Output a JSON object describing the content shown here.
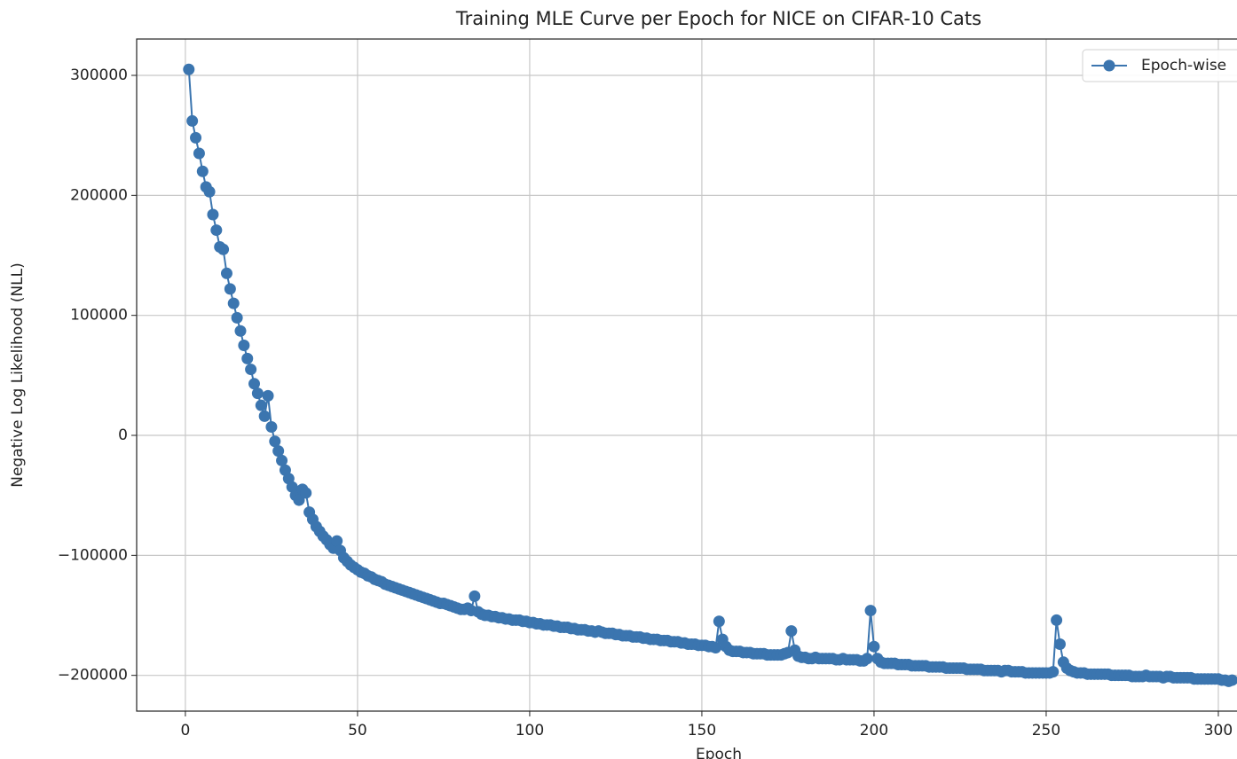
{
  "chart_data": {
    "type": "line",
    "title": "Training MLE Curve per Epoch for NICE on CIFAR-10 Cats",
    "xlabel": "Epoch",
    "ylabel": "Negative Log Likelihood (NLL)",
    "xlim": [
      -14.15,
      318.15
    ],
    "ylim": [
      -229800,
      330300
    ],
    "xticks": [
      0,
      50,
      100,
      150,
      200,
      250,
      300
    ],
    "yticks": [
      {
        "value": -200000,
        "label": "−200000"
      },
      {
        "value": -100000,
        "label": "−100000"
      },
      0,
      100000,
      200000,
      300000
    ],
    "grid": true,
    "legend": "upper right",
    "x": [
      1,
      2,
      3,
      4,
      5,
      6,
      7,
      8,
      9,
      10,
      11,
      12,
      13,
      14,
      15,
      16,
      17,
      18,
      19,
      20,
      21,
      22,
      23,
      24,
      25,
      26,
      27,
      28,
      29,
      30,
      31,
      32,
      33,
      34,
      35,
      36,
      37,
      38,
      39,
      40,
      41,
      42,
      43,
      44,
      45,
      46,
      47,
      48,
      49,
      50,
      51,
      52,
      53,
      54,
      55,
      56,
      57,
      58,
      59,
      60,
      61,
      62,
      63,
      64,
      65,
      66,
      67,
      68,
      69,
      70,
      71,
      72,
      73,
      74,
      75,
      76,
      77,
      78,
      79,
      80,
      81,
      82,
      83,
      84,
      85,
      86,
      87,
      88,
      89,
      90,
      91,
      92,
      93,
      94,
      95,
      96,
      97,
      98,
      99,
      100,
      101,
      102,
      103,
      104,
      105,
      106,
      107,
      108,
      109,
      110,
      111,
      112,
      113,
      114,
      115,
      116,
      117,
      118,
      119,
      120,
      121,
      122,
      123,
      124,
      125,
      126,
      127,
      128,
      129,
      130,
      131,
      132,
      133,
      134,
      135,
      136,
      137,
      138,
      139,
      140,
      141,
      142,
      143,
      144,
      145,
      146,
      147,
      148,
      149,
      150,
      151,
      152,
      153,
      154,
      155,
      156,
      157,
      158,
      159,
      160,
      161,
      162,
      163,
      164,
      165,
      166,
      167,
      168,
      169,
      170,
      171,
      172,
      173,
      174,
      175,
      176,
      177,
      178,
      179,
      180,
      181,
      182,
      183,
      184,
      185,
      186,
      187,
      188,
      189,
      190,
      191,
      192,
      193,
      194,
      195,
      196,
      197,
      198,
      199,
      200,
      201,
      202,
      203,
      204,
      205,
      206,
      207,
      208,
      209,
      210,
      211,
      212,
      213,
      214,
      215,
      216,
      217,
      218,
      219,
      220,
      221,
      222,
      223,
      224,
      225,
      226,
      227,
      228,
      229,
      230,
      231,
      232,
      233,
      234,
      235,
      236,
      237,
      238,
      239,
      240,
      241,
      242,
      243,
      244,
      245,
      246,
      247,
      248,
      249,
      250,
      251,
      252,
      253,
      254,
      255,
      256,
      257,
      258,
      259,
      260,
      261,
      262,
      263,
      264,
      265,
      266,
      267,
      268,
      269,
      270,
      271,
      272,
      273,
      274,
      275,
      276,
      277,
      278,
      279,
      280,
      281,
      282,
      283,
      284,
      285,
      286,
      287,
      288,
      289,
      290,
      291,
      292,
      293,
      294,
      295,
      296,
      297,
      298,
      299,
      300,
      301,
      302,
      303,
      304
    ],
    "series": [
      {
        "name": "Epoch-wise",
        "color": "#3b75af",
        "values": [
          305000,
          262000,
          248000,
          235000,
          220000,
          207000,
          203000,
          184000,
          171000,
          157000,
          155000,
          135000,
          122000,
          110000,
          98000,
          87000,
          75000,
          64000,
          55000,
          43000,
          35000,
          25000,
          16000,
          33000,
          7000,
          -5000,
          -13000,
          -21000,
          -29000,
          -36000,
          -43000,
          -50000,
          -54000,
          -45000,
          -48000,
          -64000,
          -70000,
          -76000,
          -80000,
          -84000,
          -87000,
          -91000,
          -94000,
          -88000,
          -96000,
          -102000,
          -105000,
          -108000,
          -110000,
          -112000,
          -114000,
          -115000,
          -117000,
          -118000,
          -120000,
          -121000,
          -122000,
          -124000,
          -125000,
          -126000,
          -127000,
          -128000,
          -129000,
          -130000,
          -131000,
          -132000,
          -133000,
          -134000,
          -135000,
          -136000,
          -137000,
          -138000,
          -139000,
          -140000,
          -140000,
          -141000,
          -142000,
          -143000,
          -144000,
          -145000,
          -145000,
          -144000,
          -146000,
          -134000,
          -147000,
          -149000,
          -150000,
          -150000,
          -151000,
          -151000,
          -152000,
          -152000,
          -153000,
          -153000,
          -154000,
          -154000,
          -154000,
          -155000,
          -155000,
          -156000,
          -156000,
          -157000,
          -157000,
          -158000,
          -158000,
          -158000,
          -159000,
          -159000,
          -160000,
          -160000,
          -160000,
          -161000,
          -161000,
          -162000,
          -162000,
          -162000,
          -163000,
          -163000,
          -164000,
          -163000,
          -164000,
          -165000,
          -165000,
          -165000,
          -166000,
          -166000,
          -167000,
          -167000,
          -167000,
          -168000,
          -168000,
          -168000,
          -169000,
          -169000,
          -170000,
          -170000,
          -170000,
          -171000,
          -171000,
          -171000,
          -172000,
          -172000,
          -172000,
          -173000,
          -173000,
          -174000,
          -174000,
          -174000,
          -175000,
          -175000,
          -175000,
          -176000,
          -176000,
          -177000,
          -155000,
          -170000,
          -176000,
          -179000,
          -180000,
          -180000,
          -180000,
          -181000,
          -181000,
          -181000,
          -182000,
          -182000,
          -182000,
          -182000,
          -183000,
          -183000,
          -183000,
          -183000,
          -183000,
          -182000,
          -181000,
          -163000,
          -179000,
          -184000,
          -185000,
          -185000,
          -186000,
          -186000,
          -185000,
          -186000,
          -186000,
          -186000,
          -186000,
          -186000,
          -187000,
          -187000,
          -186000,
          -187000,
          -187000,
          -187000,
          -187000,
          -188000,
          -188000,
          -186000,
          -146000,
          -176000,
          -186000,
          -189000,
          -190000,
          -190000,
          -190000,
          -190000,
          -191000,
          -191000,
          -191000,
          -191000,
          -192000,
          -192000,
          -192000,
          -192000,
          -192000,
          -193000,
          -193000,
          -193000,
          -193000,
          -193000,
          -194000,
          -194000,
          -194000,
          -194000,
          -194000,
          -194000,
          -195000,
          -195000,
          -195000,
          -195000,
          -195000,
          -196000,
          -196000,
          -196000,
          -196000,
          -196000,
          -197000,
          -196000,
          -196000,
          -197000,
          -197000,
          -197000,
          -197000,
          -198000,
          -198000,
          -198000,
          -198000,
          -198000,
          -198000,
          -198000,
          -198000,
          -197000,
          -154000,
          -174000,
          -189000,
          -194000,
          -196000,
          -197000,
          -198000,
          -198000,
          -198000,
          -199000,
          -199000,
          -199000,
          -199000,
          -199000,
          -199000,
          -199000,
          -200000,
          -200000,
          -200000,
          -200000,
          -200000,
          -200000,
          -201000,
          -201000,
          -201000,
          -201000,
          -200000,
          -201000,
          -201000,
          -201000,
          -201000,
          -202000,
          -201000,
          -201000,
          -202000,
          -202000,
          -202000,
          -202000,
          -202000,
          -202000,
          -203000,
          -203000,
          -203000,
          -203000,
          -203000,
          -203000,
          -203000,
          -203000,
          -204000,
          -204000,
          -205000,
          -204000
        ]
      }
    ]
  }
}
